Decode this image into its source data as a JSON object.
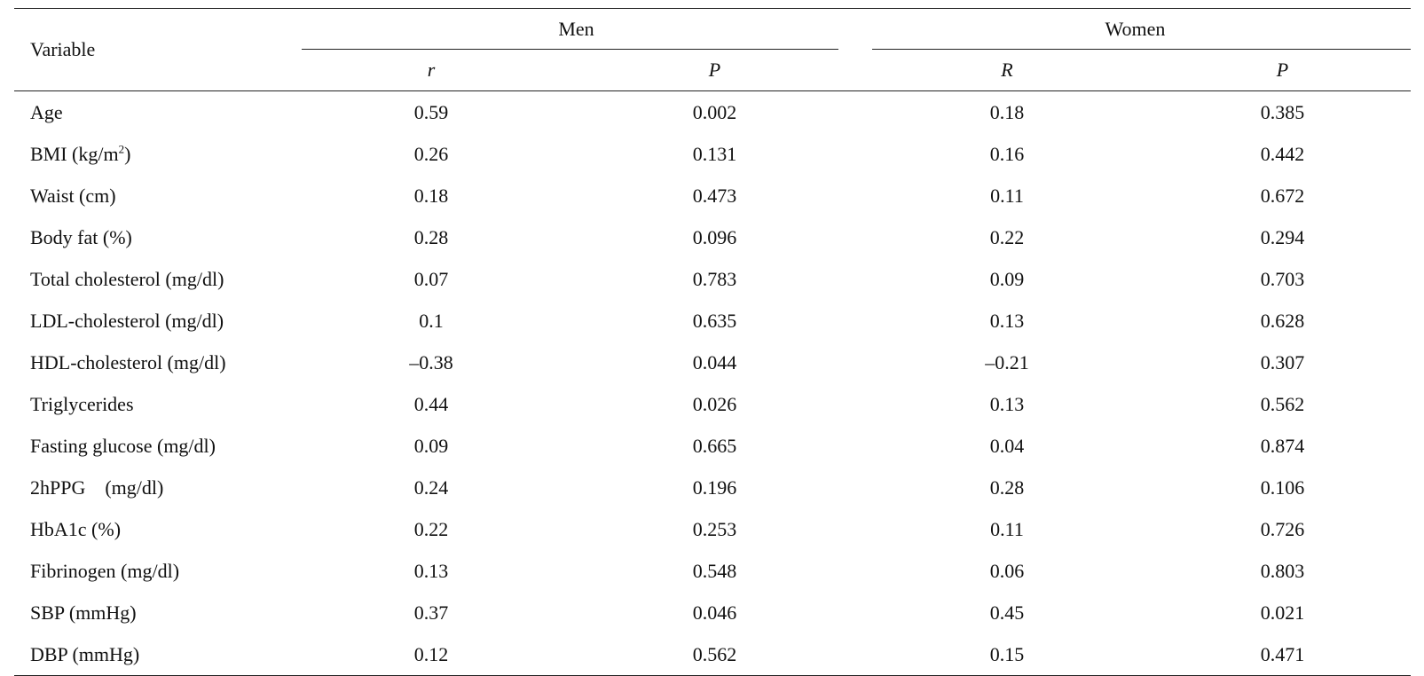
{
  "table": {
    "variable_header": "Variable",
    "groups": [
      {
        "label": "Men",
        "sub": [
          "r",
          "P"
        ]
      },
      {
        "label": "Women",
        "sub": [
          "R",
          "P"
        ]
      }
    ],
    "rows": [
      {
        "variable": "Age",
        "values": [
          "0.59",
          "0.002",
          "0.18",
          "0.385"
        ]
      },
      {
        "variable": "BMI (kg/m",
        "sup": "2",
        "suffix": ")",
        "values": [
          "0.26",
          "0.131",
          "0.16",
          "0.442"
        ]
      },
      {
        "variable": "Waist (cm)",
        "values": [
          "0.18",
          "0.473",
          "0.11",
          "0.672"
        ]
      },
      {
        "variable": "Body fat (%)",
        "values": [
          "0.28",
          "0.096",
          "0.22",
          "0.294"
        ]
      },
      {
        "variable": "Total cholesterol (mg/dl)",
        "values": [
          "0.07",
          "0.783",
          "0.09",
          "0.703"
        ]
      },
      {
        "variable": "LDL-cholesterol (mg/dl)",
        "values": [
          "0.1",
          "0.635",
          "0.13",
          "0.628"
        ]
      },
      {
        "variable": "HDL-cholesterol (mg/dl)",
        "values": [
          "–0.38",
          "0.044",
          "–0.21",
          "0.307"
        ]
      },
      {
        "variable": "Triglycerides",
        "values": [
          "0.44",
          "0.026",
          "0.13",
          "0.562"
        ]
      },
      {
        "variable": "Fasting glucose (mg/dl)",
        "values": [
          "0.09",
          "0.665",
          "0.04",
          "0.874"
        ]
      },
      {
        "variable": "2hPPG    (mg/dl)",
        "values": [
          "0.24",
          "0.196",
          "0.28",
          "0.106"
        ]
      },
      {
        "variable": "HbA1c (%)",
        "values": [
          "0.22",
          "0.253",
          "0.11",
          "0.726"
        ]
      },
      {
        "variable": "Fibrinogen (mg/dl)",
        "values": [
          "0.13",
          "0.548",
          "0.06",
          "0.803"
        ]
      },
      {
        "variable": "SBP (mmHg)",
        "values": [
          "0.37",
          "0.046",
          "0.45",
          "0.021"
        ]
      },
      {
        "variable": "DBP (mmHg)",
        "values": [
          "0.12",
          "0.562",
          "0.15",
          "0.471"
        ]
      }
    ]
  }
}
